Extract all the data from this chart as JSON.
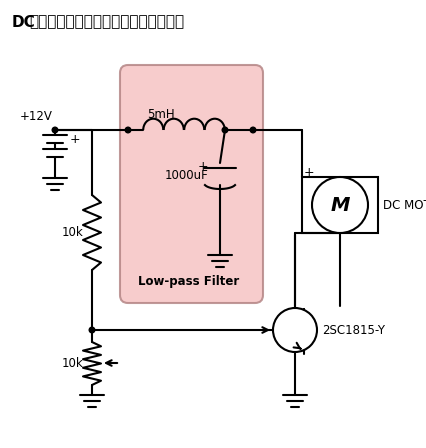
{
  "title_dc": "DC",
  "title_rest": "モーターのドライブ回路（速度可変）",
  "label_5mh": "5mH",
  "label_cap": "1000uF",
  "label_lpf": "Low-pass Filter",
  "label_motor": "DC MOTOR",
  "label_transistor": "2SC1815-Y",
  "label_r1": "10k",
  "label_r2": "10k",
  "label_vcc": "+12V",
  "label_plus": "+",
  "filter_color": "#f5c0c0",
  "filter_edge": "#b08080",
  "bg_color": "#ffffff",
  "line_color": "#000000",
  "figsize": [
    4.27,
    4.48
  ],
  "dpi": 100
}
